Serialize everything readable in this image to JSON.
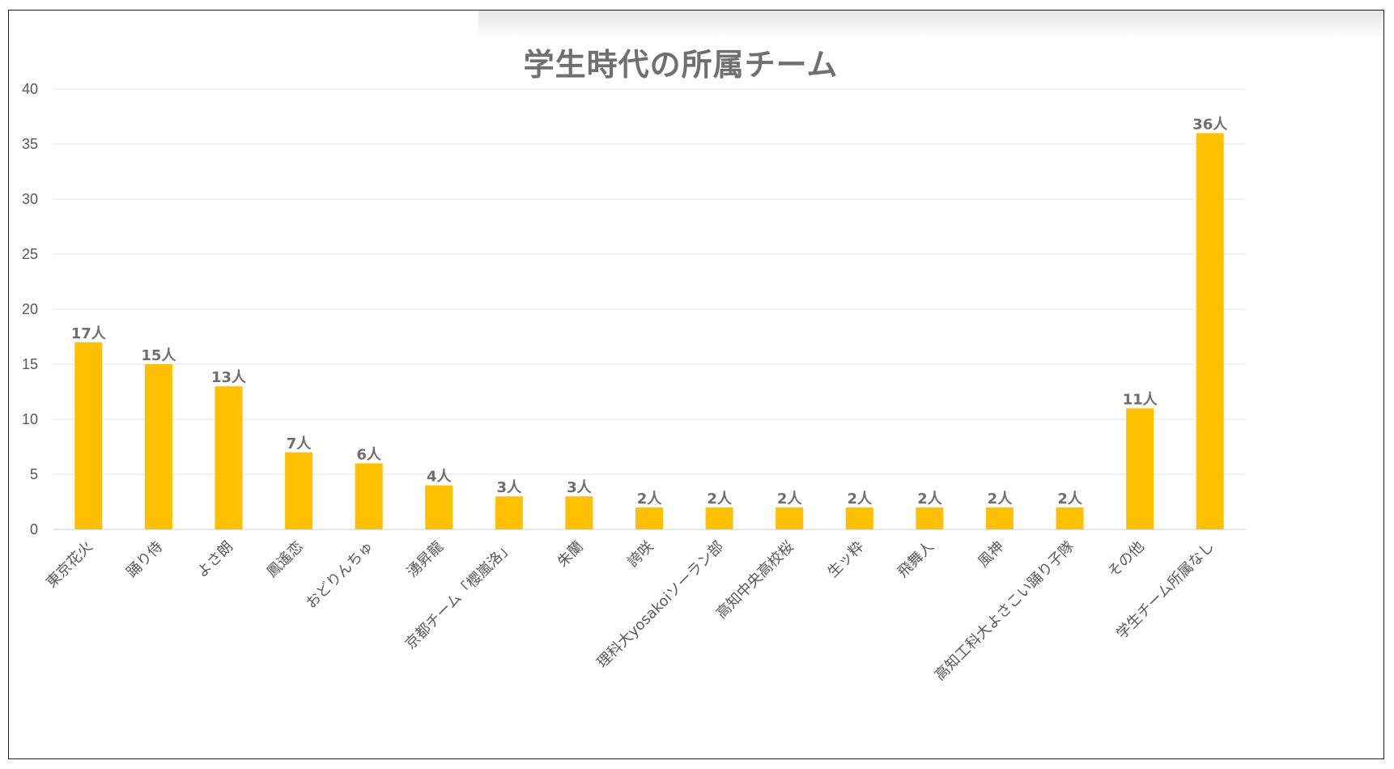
{
  "chart_data": {
    "type": "bar",
    "title": "学生時代の所属チーム",
    "xlabel": "",
    "ylabel": "",
    "ylim": [
      0,
      40
    ],
    "yticks": [
      0,
      5,
      10,
      15,
      20,
      25,
      30,
      35,
      40
    ],
    "grid": true,
    "legend": "none",
    "bar_color": "#ffc000",
    "categories": [
      "東京花火",
      "踊り侍",
      "よさ朗",
      "鳳遙恋",
      "おどりんちゅ",
      "湧昇龍",
      "京都チーム「櫻嵐洛」",
      "朱蘭",
      "誇咲",
      "理科大yosakoiソーラン部",
      "高知中央高校桜",
      "生ッ粋",
      "飛舞人",
      "風神",
      "高知工科大よさこい踊り子隊",
      "その他",
      "学生チーム所属なし"
    ],
    "values": [
      17,
      15,
      13,
      7,
      6,
      4,
      3,
      3,
      2,
      2,
      2,
      2,
      2,
      2,
      2,
      11,
      36
    ],
    "data_labels": [
      "17人",
      "15人",
      "13人",
      "7人",
      "6人",
      "4人",
      "3人",
      "3人",
      "2人",
      "2人",
      "2人",
      "2人",
      "2人",
      "2人",
      "2人",
      "11人",
      "36人"
    ]
  }
}
